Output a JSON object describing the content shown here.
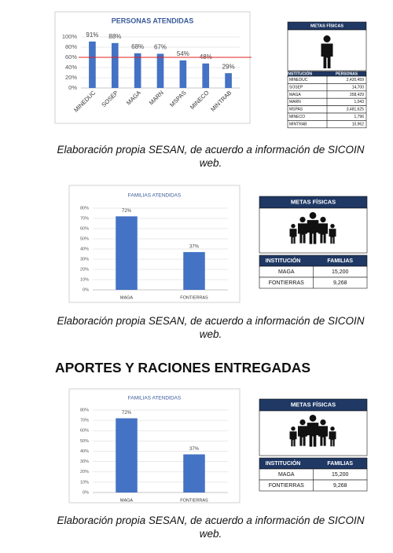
{
  "chart_data": [
    {
      "type": "bar",
      "title": "PERSONAS ATENDIDAS",
      "categories": [
        "MINEDUC",
        "SOSEP",
        "MAGA",
        "MARN",
        "MSPAS",
        "MINECO",
        "MINTRAB"
      ],
      "values": [
        91,
        88,
        68,
        67,
        54,
        48,
        29
      ],
      "value_labels": [
        "91%",
        "88%",
        "68%",
        "67%",
        "54%",
        "48%",
        "29%"
      ],
      "color": "#4472c4",
      "ylim": [
        0,
        100
      ],
      "yticks": [
        {
          "value": 0,
          "label": "0%"
        },
        {
          "value": 20,
          "label": "20%"
        },
        {
          "value": 40,
          "label": "40%"
        },
        {
          "value": 60,
          "label": "60%"
        },
        {
          "value": 80,
          "label": "80%"
        },
        {
          "value": 100,
          "label": "100%"
        }
      ],
      "grid": true,
      "reference_line": {
        "value": 60,
        "color": "#e02020"
      }
    },
    {
      "type": "bar",
      "title": "FAMILIAS ATENDIDAS",
      "categories": [
        "MAGA",
        "FONTIERRAS"
      ],
      "values": [
        72,
        37
      ],
      "value_labels": [
        "72%",
        "37%"
      ],
      "color": "#4472c4",
      "ylim": [
        0,
        80
      ],
      "yticks": [
        {
          "value": 0,
          "label": "0%"
        },
        {
          "value": 10,
          "label": "10%"
        },
        {
          "value": 20,
          "label": "20%"
        },
        {
          "value": 30,
          "label": "30%"
        },
        {
          "value": 40,
          "label": "40%"
        },
        {
          "value": 50,
          "label": "50%"
        },
        {
          "value": 60,
          "label": "60%"
        },
        {
          "value": 70,
          "label": "70%"
        },
        {
          "value": 80,
          "label": "80%"
        }
      ],
      "grid": true
    },
    {
      "type": "bar",
      "title": "FAMILIAS ATENDIDAS",
      "categories": [
        "MAGA",
        "FONTIERRAS"
      ],
      "values": [
        72,
        37
      ],
      "value_labels": [
        "72%",
        "37%"
      ],
      "color": "#4472c4",
      "ylim": [
        0,
        80
      ],
      "yticks": [
        {
          "value": 0,
          "label": "0%"
        },
        {
          "value": 10,
          "label": "10%"
        },
        {
          "value": 20,
          "label": "20%"
        },
        {
          "value": 30,
          "label": "30%"
        },
        {
          "value": 40,
          "label": "40%"
        },
        {
          "value": 50,
          "label": "50%"
        },
        {
          "value": 60,
          "label": "60%"
        },
        {
          "value": 70,
          "label": "70%"
        },
        {
          "value": 80,
          "label": "80%"
        }
      ],
      "grid": true
    }
  ],
  "tables": [
    {
      "title": "METAS FÍSICAS",
      "columns": [
        "INSTITUCIÓN",
        "PERSONAS"
      ],
      "rows": [
        [
          "MINEDUC",
          "2,420,459"
        ],
        [
          "SOSEP",
          "14,700"
        ],
        [
          "MAGA",
          "358,429"
        ],
        [
          "MARN",
          "1,043"
        ],
        [
          "MSPAS",
          "3,481,625"
        ],
        [
          "MINECO",
          "1,796"
        ],
        [
          "MINTRAB",
          "10,962"
        ]
      ]
    },
    {
      "title": "METAS FÍSICAS",
      "columns": [
        "INSTITUCIÓN",
        "FAMILIAS"
      ],
      "rows": [
        [
          "MAGA",
          "15,200"
        ],
        [
          "FONTIERRAS",
          "9,268"
        ]
      ]
    },
    {
      "title": "METAS FÍSICAS",
      "columns": [
        "INSTITUCIÓN",
        "FAMILIAS"
      ],
      "rows": [
        [
          "MAGA",
          "15,200"
        ],
        [
          "FONTIERRAS",
          "9,268"
        ]
      ]
    }
  ],
  "captions": [
    "Elaboración propia SESAN, de acuerdo a información de SICOIN web.",
    "Elaboración propia SESAN, de acuerdo a información de SICOIN web.",
    "Elaboración propia SESAN, de acuerdo a información de SICOIN web."
  ],
  "heading": "APORTES Y RACIONES ENTREGADAS"
}
